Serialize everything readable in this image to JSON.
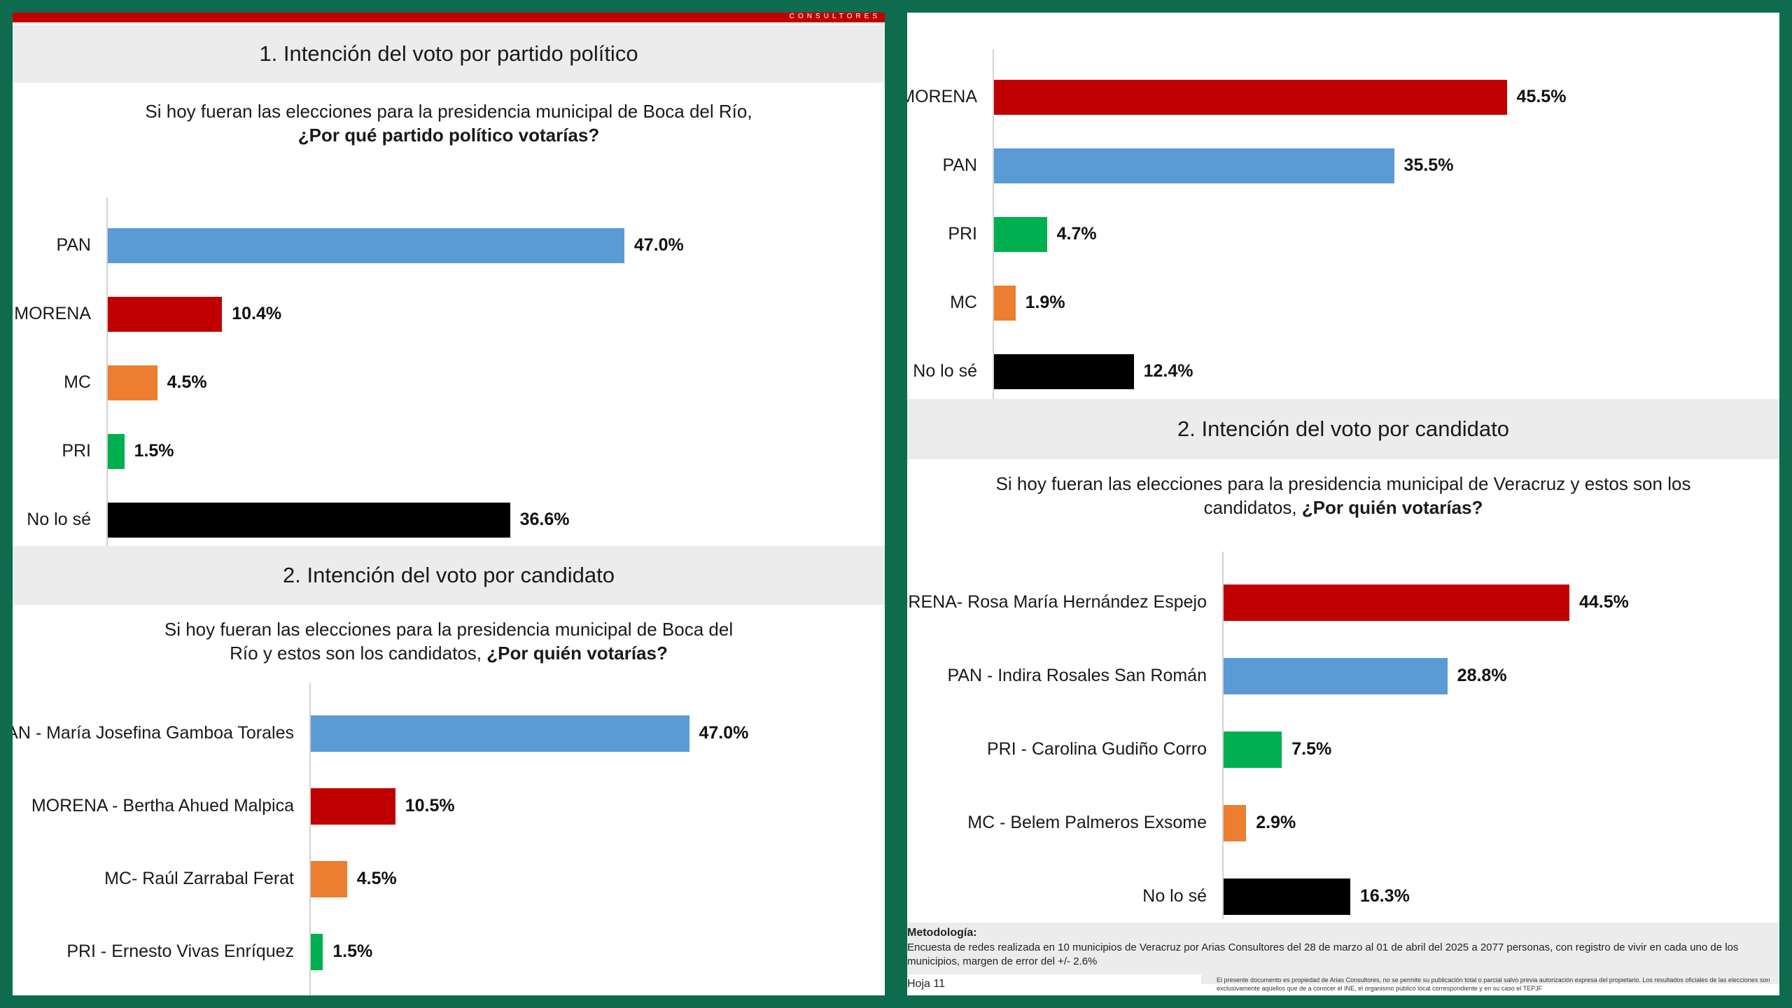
{
  "left": {
    "brand": "CONSULTORES",
    "section1": {
      "title": "1. Intención del voto por partido político",
      "question_prefix": "Si hoy fueran las elecciones para la presidencia municipal de Boca del Río,",
      "question_bold": "¿Por qué partido político votarías?"
    },
    "section2": {
      "title": "2. Intención del voto por candidato",
      "question_prefix": "Si hoy fueran las elecciones para la presidencia municipal de Boca del Río y estos son los candidatos,",
      "question_bold": "¿Por quién votarías?"
    }
  },
  "right": {
    "section2": {
      "title": "2. Intención del voto por candidato",
      "question_prefix": "Si hoy fueran las elecciones para la presidencia municipal de Veracruz y estos son los candidatos,",
      "question_bold": "¿Por quién votarías?"
    },
    "methodology": {
      "title": "Metodología:",
      "text": "Encuesta de redes realizada en 10 municipios de Veracruz por Arias Consultores del 28 de marzo al 01 de abril del 2025 a 2077 personas, con registro de vivir en cada uno de los municipios, margen de error del +/- 2.6%"
    },
    "footer": {
      "page": "Hoja 11",
      "note": "El presente documento es propiedad de Arias Consultores, no se permite su publicación total o parcial salvo previa autorización expresa del propietario. Los resultados oficiales de las elecciones son exclusivamente aquellos que de a conocer el INE, el organismo público local correspondiente y en su caso el TEPJF"
    }
  },
  "colors": {
    "MORENA": "#c00000",
    "PAN": "#5b9bd5",
    "PRI": "#00b050",
    "MC": "#ed7d31",
    "No lo sé": "#000000"
  },
  "chart_data": [
    {
      "id": "boca-partido",
      "type": "bar",
      "orientation": "horizontal",
      "title": "1. Intención del voto por partido político",
      "categories": [
        "PAN",
        "MORENA",
        "MC",
        "PRI",
        "No lo sé"
      ],
      "values": [
        47.0,
        10.4,
        4.5,
        1.5,
        36.6
      ],
      "value_labels": [
        "47.0%",
        "10.4%",
        "4.5%",
        "1.5%",
        "36.6%"
      ],
      "party": [
        "PAN",
        "MORENA",
        "MC",
        "PRI",
        "No lo sé"
      ],
      "unit": "%"
    },
    {
      "id": "boca-candidato",
      "type": "bar",
      "orientation": "horizontal",
      "title": "2. Intención del voto por candidato",
      "categories": [
        "PAN - María Josefina Gamboa Torales",
        "MORENA - Bertha Ahued Malpica",
        "MC- Raúl Zarrabal Ferat",
        "PRI - Ernesto Vivas Enríquez"
      ],
      "values": [
        47.0,
        10.5,
        4.5,
        1.5
      ],
      "value_labels": [
        "47.0%",
        "10.5%",
        "4.5%",
        "1.5%"
      ],
      "party": [
        "PAN",
        "MORENA",
        "MC",
        "PRI"
      ],
      "unit": "%"
    },
    {
      "id": "veracruz-partido",
      "type": "bar",
      "orientation": "horizontal",
      "categories": [
        "MORENA",
        "PAN",
        "PRI",
        "MC",
        "No lo sé"
      ],
      "values": [
        45.5,
        35.5,
        4.7,
        1.9,
        12.4
      ],
      "value_labels": [
        "45.5%",
        "35.5%",
        "4.7%",
        "1.9%",
        "12.4%"
      ],
      "party": [
        "MORENA",
        "PAN",
        "PRI",
        "MC",
        "No lo sé"
      ],
      "unit": "%"
    },
    {
      "id": "veracruz-candidato",
      "type": "bar",
      "orientation": "horizontal",
      "title": "2. Intención del voto por candidato",
      "categories": [
        "MORENA- Rosa María Hernández Espejo",
        "PAN - Indira Rosales San Román",
        "PRI - Carolina Gudiño Corro",
        "MC - Belem Palmeros Exsome",
        "No lo sé"
      ],
      "values": [
        44.5,
        28.8,
        7.5,
        2.9,
        16.3
      ],
      "value_labels": [
        "44.5%",
        "28.8%",
        "7.5%",
        "2.9%",
        "16.3%"
      ],
      "party": [
        "MORENA",
        "PAN",
        "PRI",
        "MC",
        "No lo sé"
      ],
      "unit": "%"
    }
  ]
}
